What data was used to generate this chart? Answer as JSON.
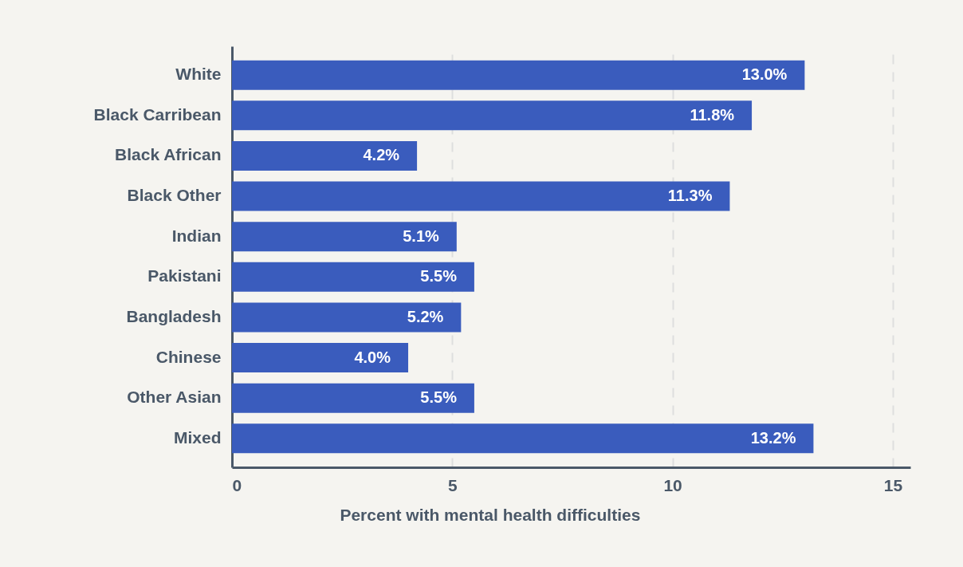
{
  "chart_data": {
    "type": "bar",
    "orientation": "horizontal",
    "categories": [
      "White",
      "Black Carribean",
      "Black African",
      "Black Other",
      "Indian",
      "Pakistani",
      "Bangladesh",
      "Chinese",
      "Other Asian",
      "Mixed"
    ],
    "values": [
      13.0,
      11.8,
      4.2,
      11.3,
      5.1,
      5.5,
      5.2,
      4.0,
      5.5,
      13.2
    ],
    "value_labels": [
      "13.0%",
      "11.8%",
      "4.2%",
      "11.3%",
      "5.1%",
      "5.5%",
      "5.2%",
      "4.0%",
      "5.5%",
      "13.2%"
    ],
    "color": "#3a5cbd",
    "xlabel": "Percent with mental health difficulties",
    "xlim": [
      0,
      15.4
    ],
    "xticks": [
      0,
      5,
      10,
      15
    ],
    "grid": "x"
  }
}
